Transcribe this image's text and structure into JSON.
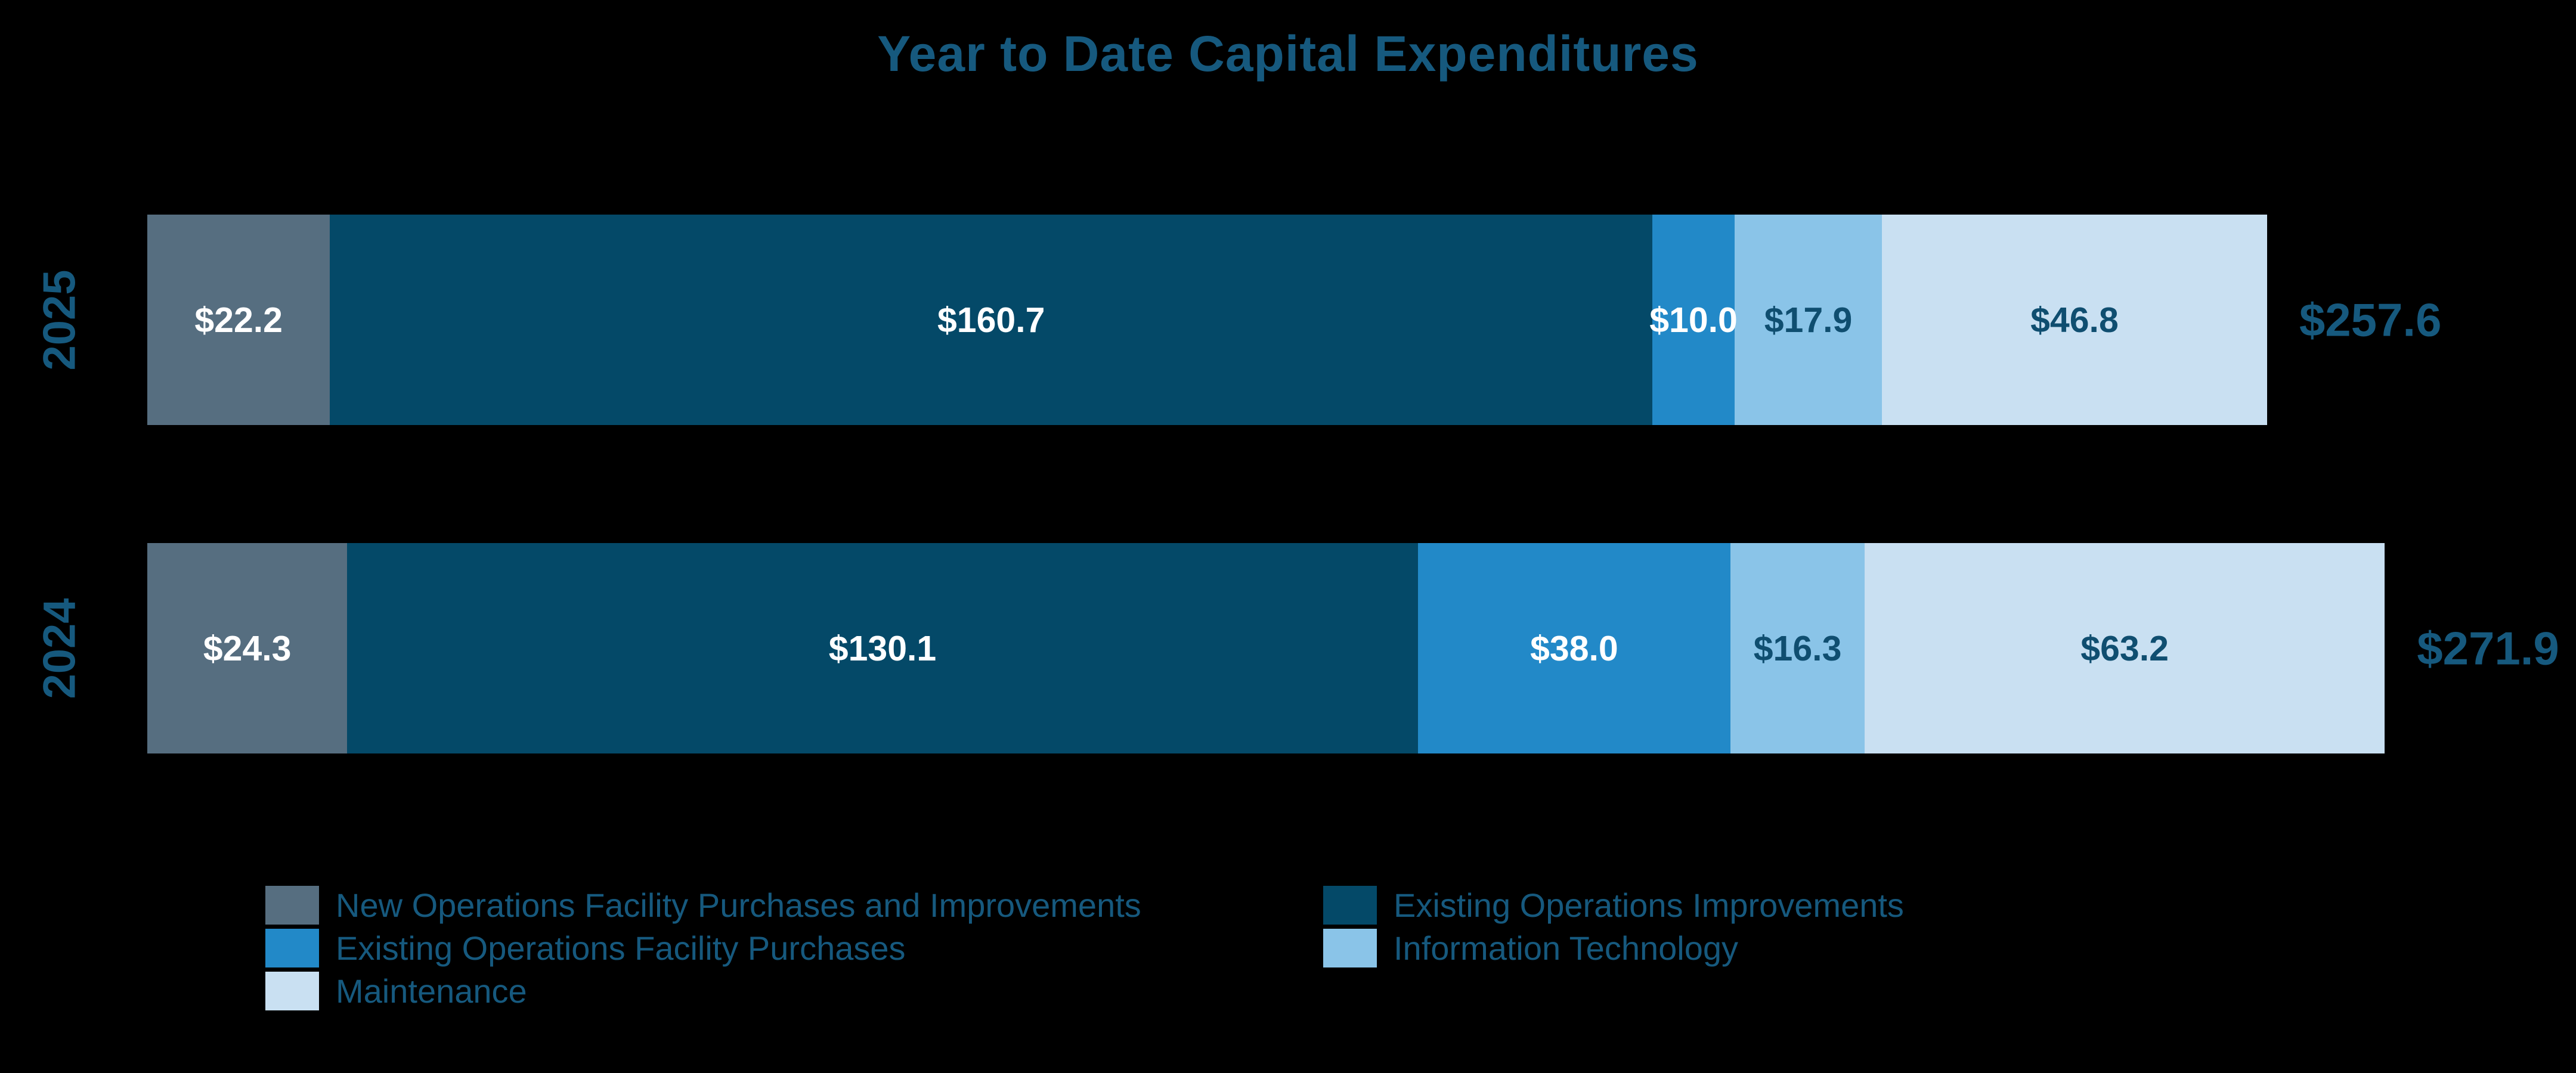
{
  "title": "Year to Date Capital Expenditures",
  "text_color": "#16597E",
  "background_color": "#000000",
  "chart_data": {
    "type": "bar",
    "orientation": "horizontal-stacked",
    "title": "Year to Date Capital Expenditures",
    "xlabel": "",
    "ylabel": "",
    "categories": [
      "2025",
      "2024"
    ],
    "series": [
      {
        "name": "New Operations Facility Purchases and Improvements",
        "color": "#566E80",
        "label_color": "#FFFFFF",
        "values": [
          22.2,
          24.3
        ],
        "labels": [
          "$22.2",
          "$24.3"
        ]
      },
      {
        "name": "Existing Operations Improvements",
        "color": "#044968",
        "label_color": "#FFFFFF",
        "values": [
          160.7,
          130.1
        ],
        "labels": [
          "$160.7",
          "$130.1"
        ]
      },
      {
        "name": "Existing Operations Facility Purchases",
        "color": "#2289C8",
        "label_color": "#FFFFFF",
        "values": [
          10.0,
          38.0
        ],
        "labels": [
          "$10.0",
          "$38.0"
        ]
      },
      {
        "name": "Information Technology",
        "color": "#8AC4E8",
        "label_color": "#0F4E70",
        "values": [
          17.9,
          16.3
        ],
        "labels": [
          "$17.9",
          "$16.3"
        ]
      },
      {
        "name": "Maintenance",
        "color": "#C9E0F2",
        "label_color": "#0F4E70",
        "values": [
          46.8,
          63.2
        ],
        "labels": [
          "$46.8",
          "$63.2"
        ]
      }
    ],
    "totals": [
      257.6,
      271.9
    ],
    "total_labels": [
      "$257.6",
      "$271.9"
    ],
    "axis_max": 271.9,
    "grid": false,
    "legend_position": "bottom"
  },
  "legend": {
    "items": [
      {
        "label": "New Operations Facility Purchases and Improvements",
        "color": "#566E80"
      },
      {
        "label": "Existing Operations Improvements",
        "color": "#044968"
      },
      {
        "label": "Existing Operations Facility Purchases",
        "color": "#2289C8"
      },
      {
        "label": "Information Technology",
        "color": "#8AC4E8"
      },
      {
        "label": "Maintenance",
        "color": "#C9E0F2"
      }
    ]
  }
}
